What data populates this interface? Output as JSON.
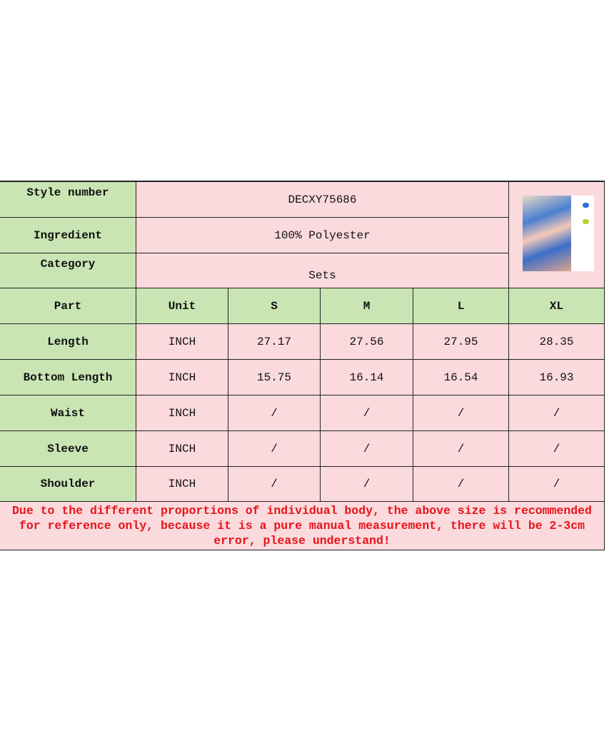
{
  "info": {
    "style_label": "Style number",
    "style_value": "DECXY75686",
    "ingredient_label": "Ingredient",
    "ingredient_value": "100% Polyester",
    "category_label": "Category",
    "category_value": "Sets"
  },
  "table": {
    "headers": [
      "Part",
      "Unit",
      "S",
      "M",
      "L",
      "XL"
    ],
    "rows": [
      [
        "Length",
        "INCH",
        "27.17",
        "27.56",
        "27.95",
        "28.35"
      ],
      [
        "Bottom Length",
        "INCH",
        "15.75",
        "16.14",
        "16.54",
        "16.93"
      ],
      [
        "Waist",
        "INCH",
        "/",
        "/",
        "/",
        "/"
      ],
      [
        "Sleeve",
        "INCH",
        "/",
        "/",
        "/",
        "/"
      ],
      [
        "Shoulder",
        "INCH",
        "/",
        "/",
        "/",
        "/"
      ]
    ]
  },
  "note": "Due to the different proportions of individual body, the above size is recommended for reference only, because it is a pure manual measurement, there will be 2-3cm error, please understand!",
  "colors": {
    "label_bg": "#c9e5b4",
    "value_bg": "#fadadd",
    "note_text": "#e8141b",
    "swatches": [
      "#2a6fd6",
      "#b5d23a"
    ]
  }
}
